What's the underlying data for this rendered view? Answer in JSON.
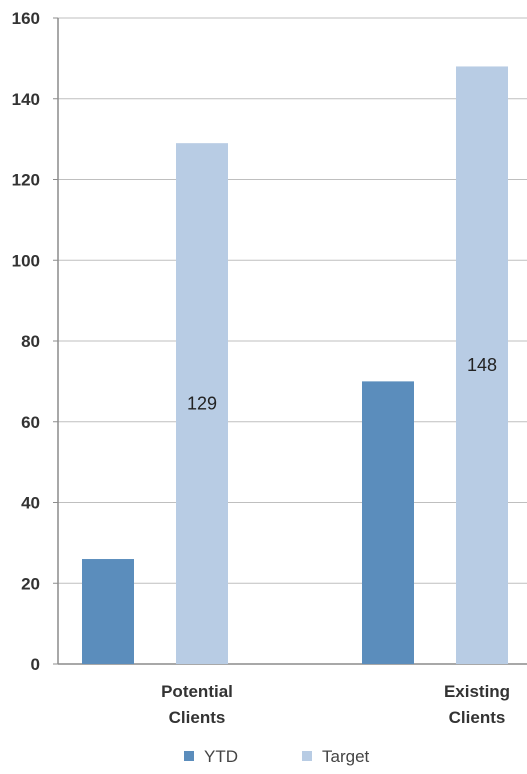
{
  "chart_data": {
    "type": "bar",
    "title": "",
    "xlabel": "",
    "ylabel": "",
    "categories": [
      "Potential Clients",
      "Existing Clients"
    ],
    "category_lines": [
      [
        "Potential",
        "Clients"
      ],
      [
        "Existing",
        "Clients"
      ]
    ],
    "series": [
      {
        "name": "YTD",
        "values": [
          26,
          70
        ],
        "color": "#5b8dbc"
      },
      {
        "name": "Target",
        "values": [
          129,
          148
        ],
        "color": "#b8cce4"
      }
    ],
    "data_labels": [
      {
        "series": 1,
        "category": 0,
        "value": 129,
        "text": "129"
      },
      {
        "series": 1,
        "category": 1,
        "value": 148,
        "text": "148"
      }
    ],
    "ylim": [
      0,
      160
    ],
    "yticks": [
      0,
      20,
      40,
      60,
      80,
      100,
      120,
      140,
      160
    ],
    "grid": true,
    "grid_color": "#bfbfbf",
    "axis_color": "#8c8c8c",
    "legend_position": "bottom"
  }
}
